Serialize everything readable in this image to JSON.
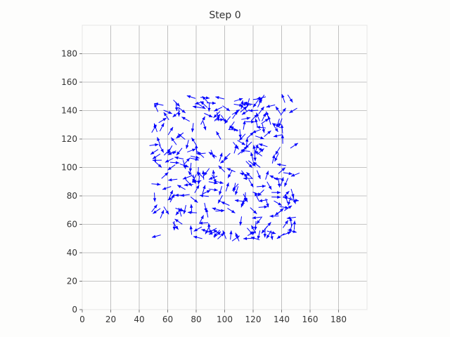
{
  "chart_data": {
    "type": "quiver",
    "title": "Step 0",
    "xlabel": "",
    "ylabel": "",
    "xlim": [
      0,
      200
    ],
    "ylim": [
      0,
      200
    ],
    "x_ticks": [
      0,
      20,
      40,
      60,
      80,
      100,
      120,
      140,
      160,
      180
    ],
    "y_ticks": [
      0,
      20,
      40,
      60,
      80,
      100,
      120,
      140,
      160,
      180
    ],
    "grid": true,
    "arrow_color": "#0000ff",
    "background_color": "#fdfdfc",
    "grid_color": "#b0b0b0",
    "cluster_region": {
      "x_range": [
        50,
        150
      ],
      "y_range": [
        50,
        150
      ]
    },
    "num_agents": 300,
    "headings": "random"
  }
}
